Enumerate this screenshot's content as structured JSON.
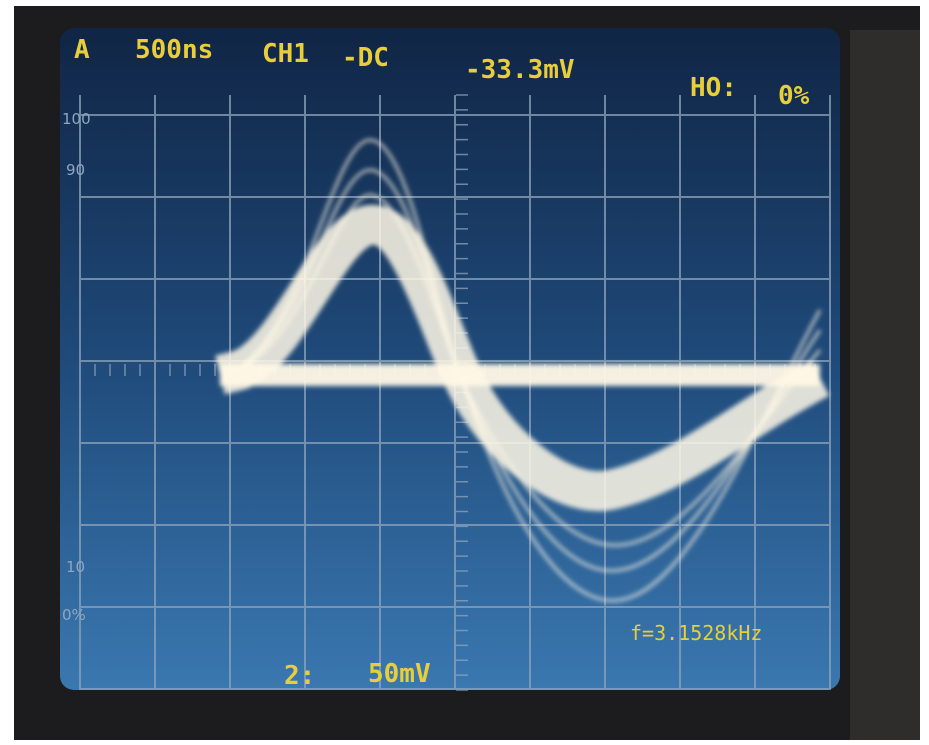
{
  "header": {
    "trigger": "A",
    "timebase": "500ns",
    "channel": "CH1",
    "coupling": "-DC",
    "level": "-33.3mV",
    "holdoff_label": "HO:",
    "holdoff_value": "0%"
  },
  "graticule": {
    "labels": [
      "100",
      "90",
      "10",
      "0%"
    ]
  },
  "readout": {
    "frequency": "f=3.1528kHz",
    "channel2": "2:",
    "scale": "50mV"
  }
}
